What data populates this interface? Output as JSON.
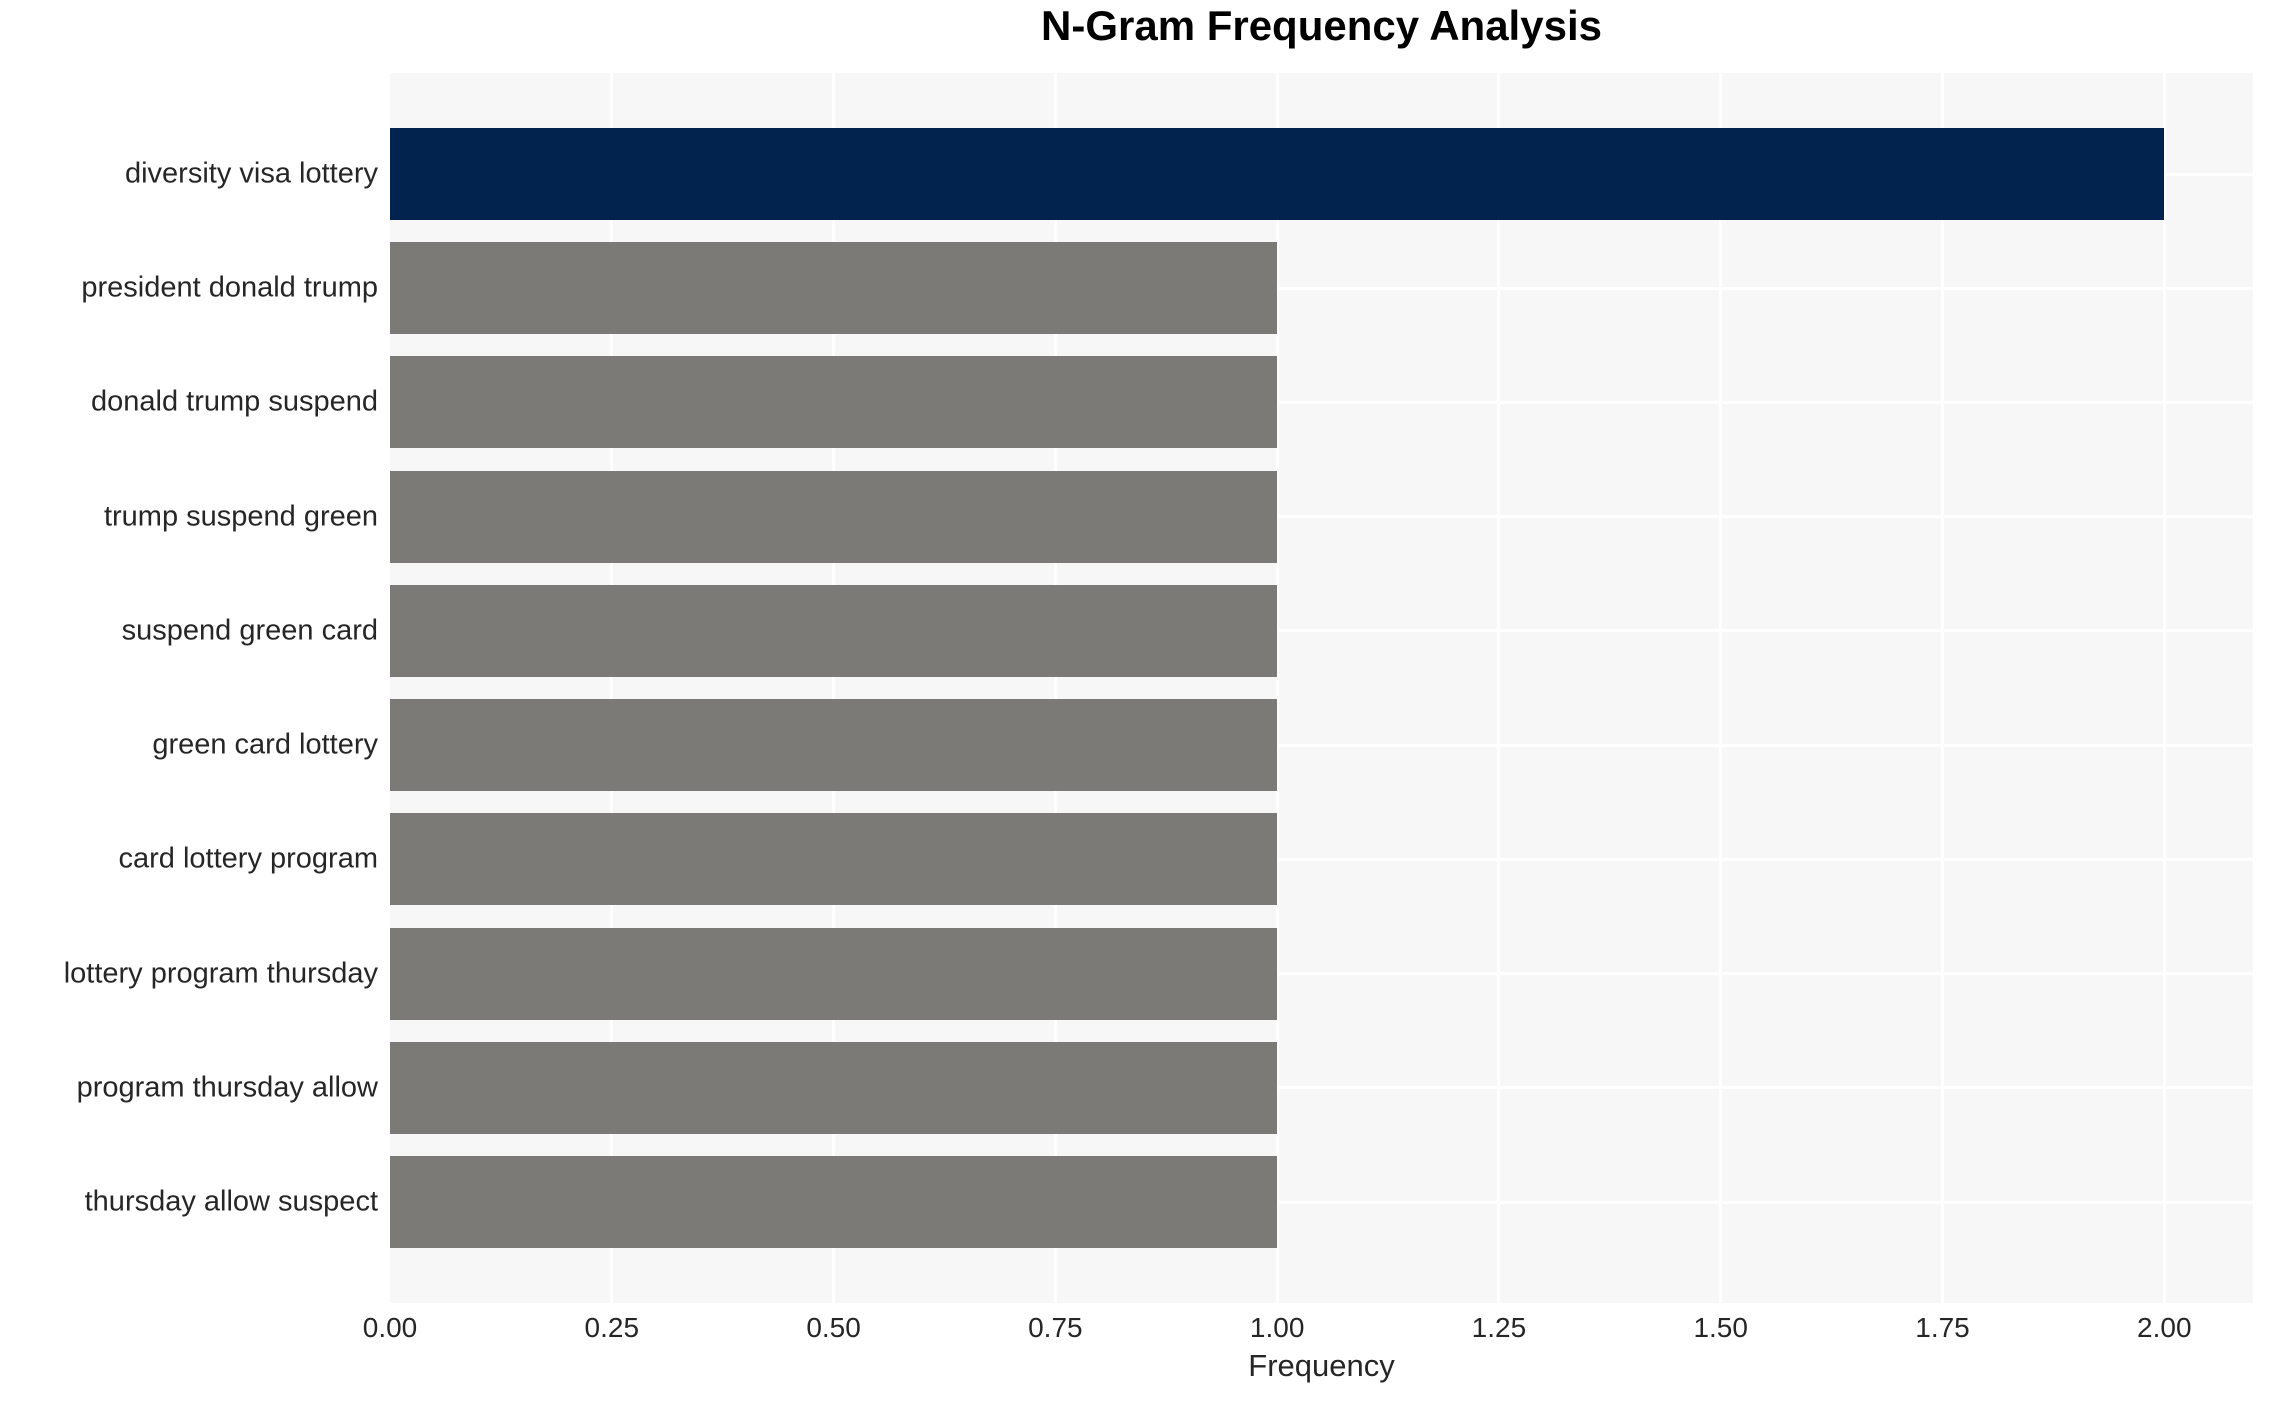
{
  "chart_data": {
    "type": "bar",
    "orientation": "horizontal",
    "title": "N-Gram Frequency Analysis",
    "xlabel": "Frequency",
    "ylabel": "",
    "categories": [
      "diversity visa lottery",
      "president donald trump",
      "donald trump suspend",
      "trump suspend green",
      "suspend green card",
      "green card lottery",
      "card lottery program",
      "lottery program thursday",
      "program thursday allow",
      "thursday allow suspect"
    ],
    "values": [
      2.0,
      1.0,
      1.0,
      1.0,
      1.0,
      1.0,
      1.0,
      1.0,
      1.0,
      1.0
    ],
    "bar_colors": [
      "#02234e",
      "#7b7a77",
      "#7b7a77",
      "#7b7a77",
      "#7b7a77",
      "#7b7a77",
      "#7b7a77",
      "#7b7a77",
      "#7b7a77",
      "#7b7a77"
    ],
    "xlim": [
      0,
      2.1
    ],
    "xticks": [
      0,
      0.25,
      0.5,
      0.75,
      1.0,
      1.25,
      1.5,
      1.75,
      2.0
    ],
    "xtick_labels": [
      "0.00",
      "0.25",
      "0.50",
      "0.75",
      "1.00",
      "1.25",
      "1.50",
      "1.75",
      "2.00"
    ],
    "grid": true,
    "legend": false,
    "colors": {
      "highlight_bar": "#02234e",
      "default_bar": "#7b7a77",
      "plot_background": "#f7f7f7",
      "grid_line": "#ffffff",
      "tick_text": "#262626",
      "title_text": "#000000"
    }
  }
}
